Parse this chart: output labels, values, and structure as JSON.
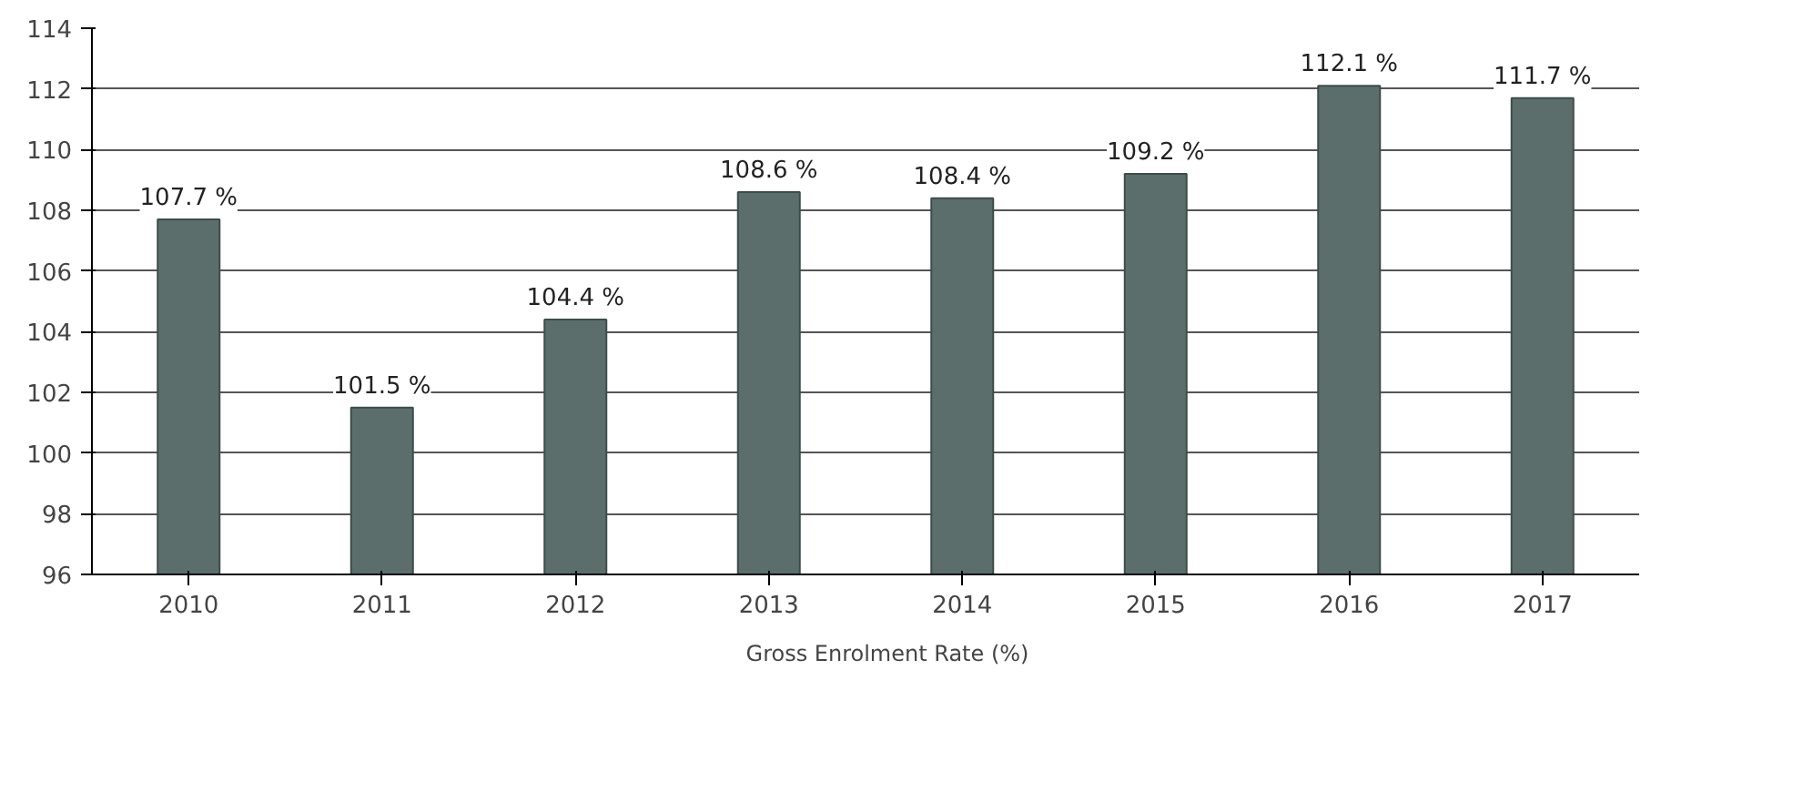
{
  "chart_data": {
    "type": "bar",
    "categories": [
      "2010",
      "2011",
      "2012",
      "2013",
      "2014",
      "2015",
      "2016",
      "2017"
    ],
    "series": [
      {
        "name": "Gross Enrolment Rate (%)",
        "color": "#5b6e6b",
        "values": [
          107.7,
          101.5,
          104.4,
          108.6,
          108.4,
          109.2,
          112.1,
          111.7
        ],
        "value_labels": [
          "107.7 %",
          "101.5 %",
          "104.4 %",
          "108.6 %",
          "108.4 %",
          "109.2 %",
          "112.1 %",
          "111.7 %"
        ]
      }
    ],
    "ylim": [
      96,
      114
    ],
    "yticks": [
      96,
      98,
      100,
      102,
      104,
      106,
      108,
      110,
      112,
      114
    ],
    "grid": "y",
    "legend": "bottom"
  }
}
